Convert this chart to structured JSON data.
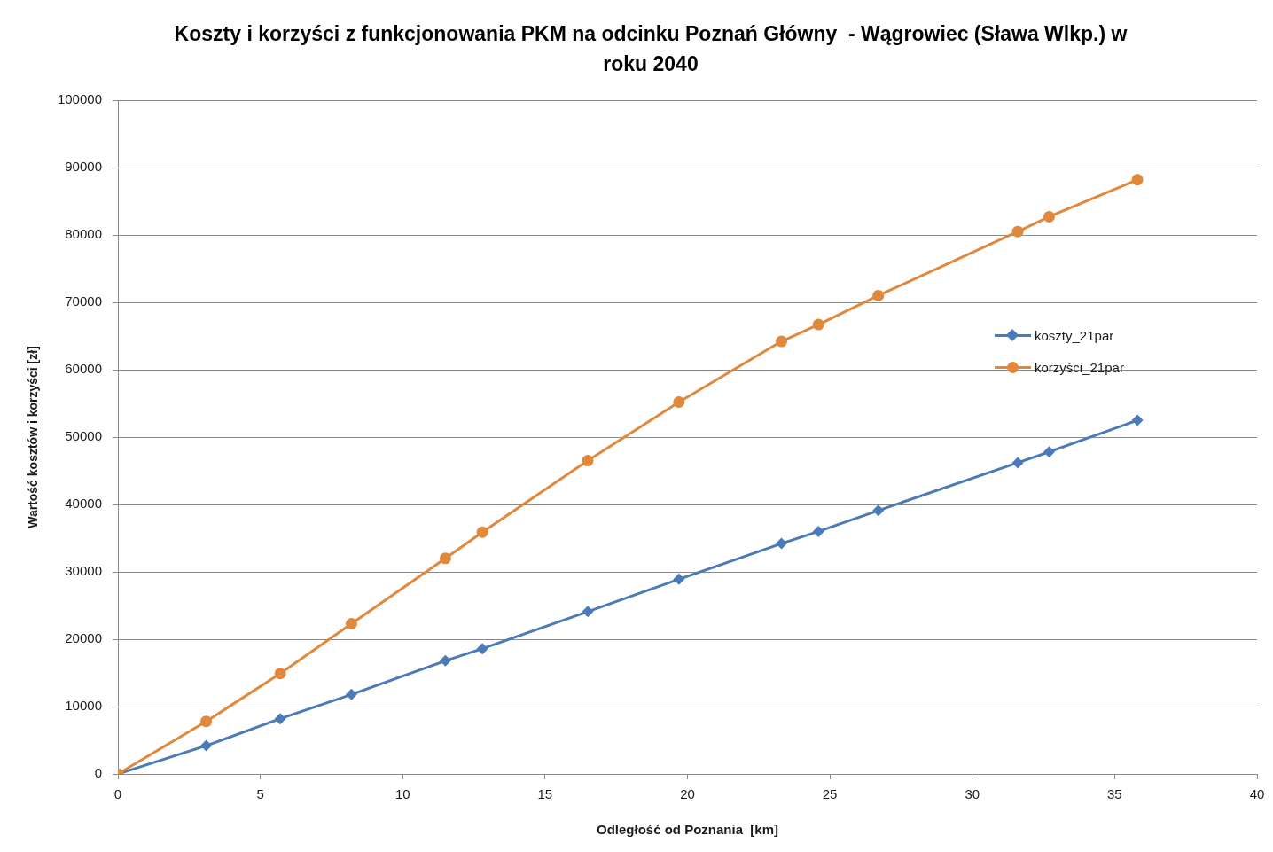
{
  "chart_data": {
    "type": "line",
    "title": "Koszty i korzyści z funkcjonowania PKM na odcinku Poznań Główny  - Wągrowiec (Sława Wlkp.) w roku 2040",
    "xlabel": "Odległość od Poznania  [km]",
    "ylabel": "Wartość kosztów i korzyści [zł]",
    "x": [
      0,
      3.1,
      5.7,
      8.2,
      11.5,
      12.8,
      16.5,
      19.7,
      23.3,
      24.6,
      26.7,
      31.6,
      32.7,
      35.8
    ],
    "series": [
      {
        "name": "koszty_21par",
        "color": "#4a7ab8",
        "marker": "diamond",
        "values": [
          0,
          4200,
          8200,
          11800,
          16800,
          18600,
          24100,
          28900,
          34200,
          36000,
          39100,
          46200,
          47800,
          52500
        ]
      },
      {
        "name": "korzyści_21par",
        "color": "#e0883c",
        "marker": "circle",
        "values": [
          0,
          7800,
          14900,
          22300,
          32000,
          35900,
          46500,
          55200,
          64200,
          66700,
          71000,
          80500,
          82700,
          88200
        ]
      }
    ],
    "xlim": [
      0,
      40
    ],
    "xticks": [
      0,
      5,
      10,
      15,
      20,
      25,
      30,
      35,
      40
    ],
    "ylim": [
      0,
      100000
    ],
    "yticks": [
      0,
      10000,
      20000,
      30000,
      40000,
      50000,
      60000,
      70000,
      80000,
      90000,
      100000
    ],
    "grid": "y",
    "legend": "right"
  }
}
